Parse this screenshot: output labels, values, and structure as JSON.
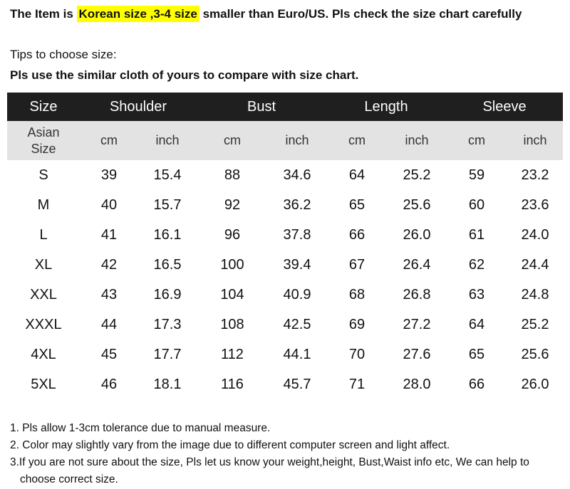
{
  "headline": {
    "prefix": "The Item is ",
    "highlight": "Korean size ,3-4 size",
    "suffix": " smaller than Euro/US. Pls check the size chart carefully",
    "highlight_color": "#ffff00"
  },
  "tips": {
    "label": "Tips to choose size:",
    "instruction": "Pls use the similar cloth of yours to compare with size chart."
  },
  "table": {
    "header_bg": "#1f1f1f",
    "subheader_bg": "#e3e3e3",
    "size_label": "Size",
    "groups": [
      "Shoulder",
      "Bust",
      "Length",
      "Sleeve"
    ],
    "asian_size_label_1": "Asian",
    "asian_size_label_2": "Size",
    "unit_cm": "cm",
    "unit_inch": "inch",
    "rows": [
      [
        "S",
        "39",
        "15.4",
        "88",
        "34.6",
        "64",
        "25.2",
        "59",
        "23.2"
      ],
      [
        "M",
        "40",
        "15.7",
        "92",
        "36.2",
        "65",
        "25.6",
        "60",
        "23.6"
      ],
      [
        "L",
        "41",
        "16.1",
        "96",
        "37.8",
        "66",
        "26.0",
        "61",
        "24.0"
      ],
      [
        "XL",
        "42",
        "16.5",
        "100",
        "39.4",
        "67",
        "26.4",
        "62",
        "24.4"
      ],
      [
        "XXL",
        "43",
        "16.9",
        "104",
        "40.9",
        "68",
        "26.8",
        "63",
        "24.8"
      ],
      [
        "XXXL",
        "44",
        "17.3",
        "108",
        "42.5",
        "69",
        "27.2",
        "64",
        "25.2"
      ],
      [
        "4XL",
        "45",
        "17.7",
        "112",
        "44.1",
        "70",
        "27.6",
        "65",
        "25.6"
      ],
      [
        "5XL",
        "46",
        "18.1",
        "116",
        "45.7",
        "71",
        "28.0",
        "66",
        "26.0"
      ]
    ]
  },
  "notes": [
    "1. Pls allow 1-3cm tolerance due to manual measure.",
    "2. Color may slightly vary from the image due to different computer screen and light affect.",
    "3.If you are not sure about the size, Pls let us know your weight,height, Bust,Waist info etc, We can help to choose correct size."
  ]
}
